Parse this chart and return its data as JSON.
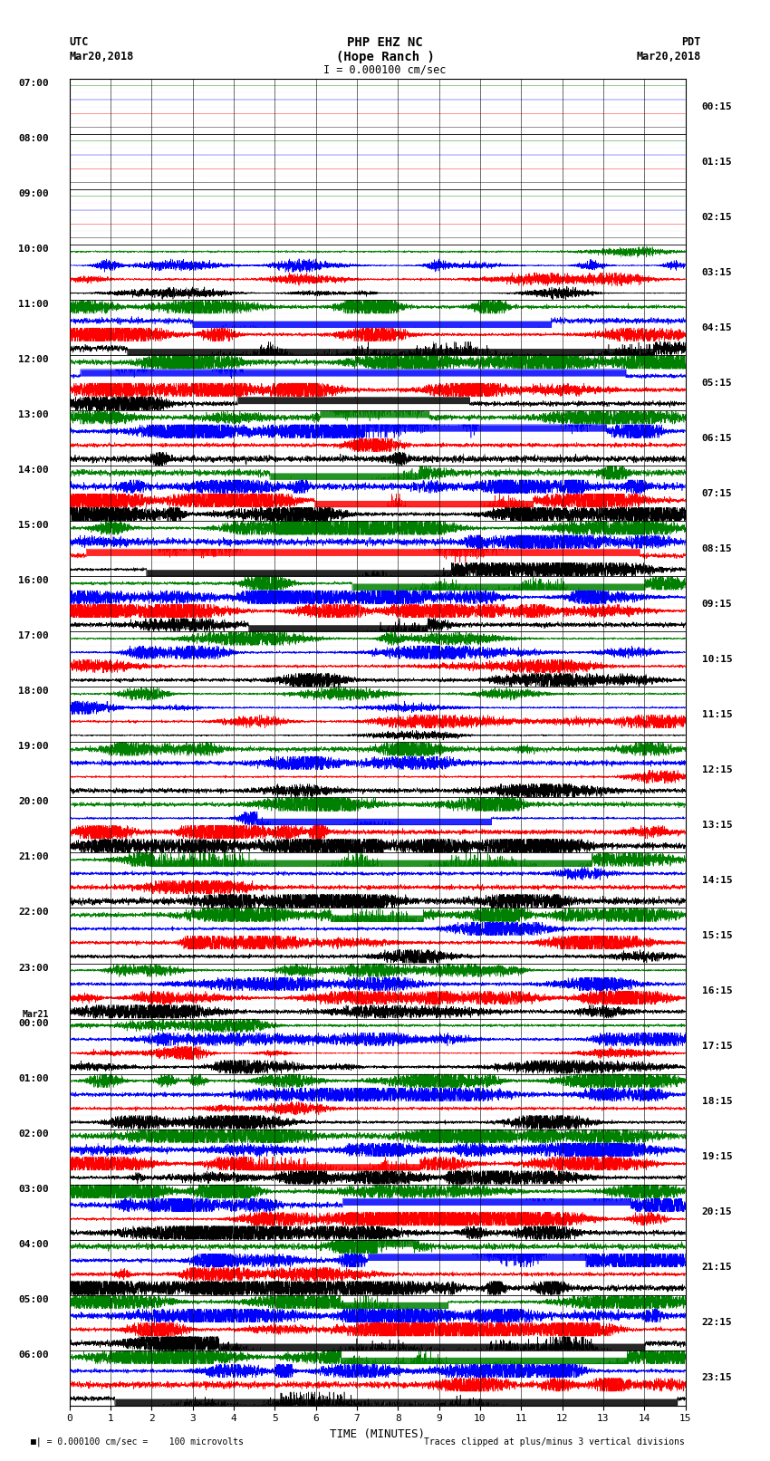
{
  "title_line1": "PHP EHZ NC",
  "title_line2": "(Hope Ranch )",
  "title_line3": "I = 0.000100 cm/sec",
  "utc_label": "UTC",
  "utc_date": "Mar20,2018",
  "pdt_label": "PDT",
  "pdt_date": "Mar20,2018",
  "footer_left": "  = 0.000100 cm/sec =    100 microvolts",
  "footer_right": "Traces clipped at plus/minus 3 vertical divisions",
  "left_times": [
    "07:00",
    "08:00",
    "09:00",
    "10:00",
    "11:00",
    "12:00",
    "13:00",
    "14:00",
    "15:00",
    "16:00",
    "17:00",
    "18:00",
    "19:00",
    "20:00",
    "21:00",
    "22:00",
    "23:00",
    "Mar21",
    "00:00",
    "01:00",
    "02:00",
    "03:00",
    "04:00",
    "05:00",
    "06:00"
  ],
  "right_times": [
    "00:15",
    "01:15",
    "02:15",
    "03:15",
    "04:15",
    "05:15",
    "06:15",
    "07:15",
    "08:15",
    "09:15",
    "10:15",
    "11:15",
    "12:15",
    "13:15",
    "14:15",
    "15:15",
    "16:15",
    "17:15",
    "18:15",
    "19:15",
    "20:15",
    "21:15",
    "22:15",
    "23:15"
  ],
  "xlabel": "TIME (MINUTES)",
  "xlim": [
    0,
    15
  ],
  "xticks": [
    0,
    1,
    2,
    3,
    4,
    5,
    6,
    7,
    8,
    9,
    10,
    11,
    12,
    13,
    14,
    15
  ],
  "n_rows": 24,
  "colors": [
    "black",
    "red",
    "blue",
    "green"
  ],
  "bg_color": "white",
  "plot_bg": "white",
  "fig_width": 8.5,
  "fig_height": 16.13,
  "dpi": 100,
  "activity_profile": [
    0.04,
    0.06,
    0.08,
    0.35,
    1.0,
    1.0,
    1.0,
    1.0,
    1.0,
    1.0,
    0.7,
    0.5,
    0.7,
    0.9,
    1.0,
    1.0,
    0.6,
    0.5,
    0.7,
    0.9,
    1.0,
    1.0,
    1.0,
    1.0
  ],
  "n_samples": 6000
}
